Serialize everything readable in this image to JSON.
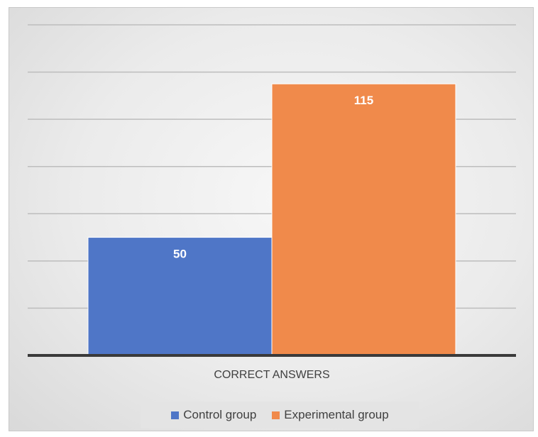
{
  "chart_data": {
    "type": "bar",
    "title": "",
    "xlabel": "",
    "ylabel": "",
    "categories": [
      "CORRECT ANSWERS"
    ],
    "series": [
      {
        "name": "Control group",
        "values": [
          50
        ],
        "color": "#4f76c7"
      },
      {
        "name": "Experimental group",
        "values": [
          115
        ],
        "color": "#f08a4b"
      }
    ],
    "ylim": [
      0,
      140
    ],
    "grid": true,
    "legend_position": "bottom",
    "data_labels": [
      "50",
      "115"
    ]
  }
}
